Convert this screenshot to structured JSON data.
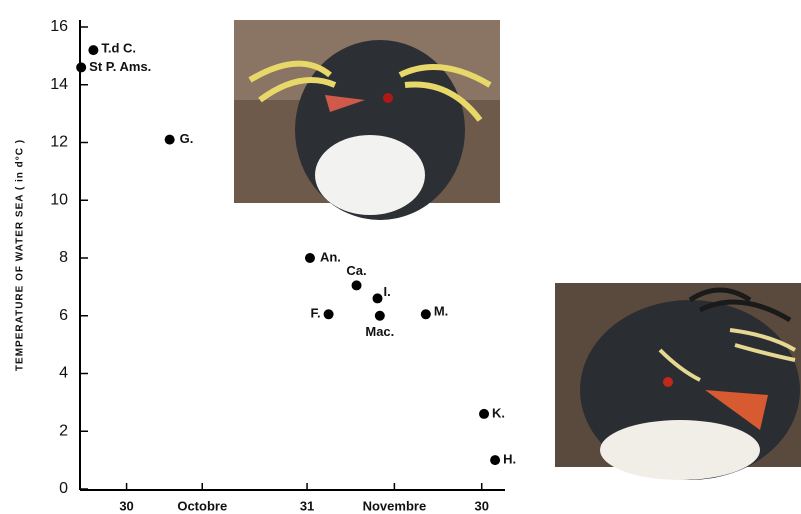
{
  "chart_data": {
    "type": "scatter",
    "y_label": "TEMPERATURE OF WATER SEA ( in d°C )",
    "x": [
      -5.7,
      -7.8,
      7.4,
      31.5,
      39.5,
      43.1,
      34.7,
      43.5,
      51.4,
      61.4,
      63.3
    ],
    "values": [
      15.2,
      14.6,
      12.1,
      8.0,
      7.05,
      6.6,
      6.05,
      6.0,
      6.05,
      2.6,
      1.0
    ],
    "labels": [
      "T.d C.",
      "St P. Ams.",
      "G.",
      "An.",
      "Ca.",
      "I.",
      "F.",
      "Mac.",
      "M.",
      "K.",
      "H."
    ],
    "color": "#000000",
    "xlim": [
      -8,
      65
    ],
    "xticks": [
      {
        "value": 0,
        "label": "30"
      },
      {
        "value": 13,
        "label": "Octobre"
      },
      {
        "value": 31,
        "label": "31"
      },
      {
        "value": 46,
        "label": "Novembre"
      },
      {
        "value": 61,
        "label": "30"
      }
    ],
    "ylim": [
      0,
      16
    ],
    "yticks": [
      0,
      2,
      4,
      6,
      8,
      10,
      12,
      14,
      16
    ]
  }
}
